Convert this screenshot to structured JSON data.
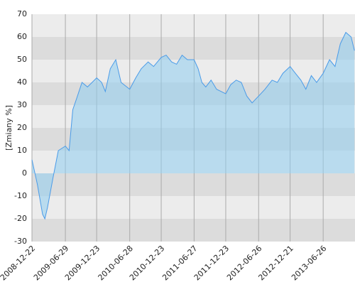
{
  "chart_data": {
    "type": "area",
    "y_label": "[Zmiany %]",
    "x": [
      "2008-12-22",
      "2009-01-22",
      "2009-02-20",
      "2009-03-05",
      "2009-03-20",
      "2009-04-20",
      "2009-05-20",
      "2009-06-29",
      "2009-07-20",
      "2009-08-10",
      "2009-09-01",
      "2009-10-01",
      "2009-11-01",
      "2009-12-23",
      "2010-01-20",
      "2010-02-10",
      "2010-03-10",
      "2010-04-10",
      "2010-05-10",
      "2010-06-28",
      "2010-08-01",
      "2010-09-01",
      "2010-10-10",
      "2010-11-10",
      "2010-12-23",
      "2011-01-20",
      "2011-02-20",
      "2011-03-20",
      "2011-04-20",
      "2011-05-20",
      "2011-06-27",
      "2011-07-20",
      "2011-08-10",
      "2011-09-01",
      "2011-10-01",
      "2011-11-01",
      "2011-12-23",
      "2012-01-20",
      "2012-02-20",
      "2012-03-20",
      "2012-04-20",
      "2012-05-20",
      "2012-06-26",
      "2012-08-01",
      "2012-09-10",
      "2012-10-10",
      "2012-11-10",
      "2012-12-21",
      "2013-01-20",
      "2013-02-20",
      "2013-03-20",
      "2013-04-20",
      "2013-05-20",
      "2013-06-26",
      "2013-08-01",
      "2013-09-01",
      "2013-10-01",
      "2013-11-01",
      "2013-12-01",
      "2013-12-20"
    ],
    "series": [
      {
        "color": "#4a9be8",
        "values": [
          6,
          -5,
          -18,
          -20,
          -15,
          -2,
          10,
          12,
          10,
          28,
          33,
          40,
          38,
          42,
          40,
          36,
          46,
          50,
          40,
          37,
          42,
          46,
          49,
          47,
          51,
          52,
          49,
          48,
          52,
          50,
          50,
          46,
          40,
          38,
          41,
          37,
          35,
          39,
          41,
          40,
          34,
          31,
          34,
          37,
          41,
          40,
          44,
          47,
          44,
          41,
          37,
          43,
          40,
          44,
          50,
          47,
          57,
          62,
          60,
          54
        ]
      }
    ],
    "xlim": [
      "2008-12-22",
      "2013-12-23"
    ],
    "xticks": [
      "2008-12-22",
      "2009-06-29",
      "2009-12-23",
      "2010-06-28",
      "2010-12-23",
      "2011-06-27",
      "2011-12-23",
      "2012-06-26",
      "2012-12-21",
      "2013-06-26"
    ],
    "ylim": [
      -30,
      70
    ],
    "yticks": [
      -30,
      -20,
      -10,
      0,
      10,
      20,
      30,
      40,
      50,
      60,
      70
    ],
    "grid": true
  }
}
